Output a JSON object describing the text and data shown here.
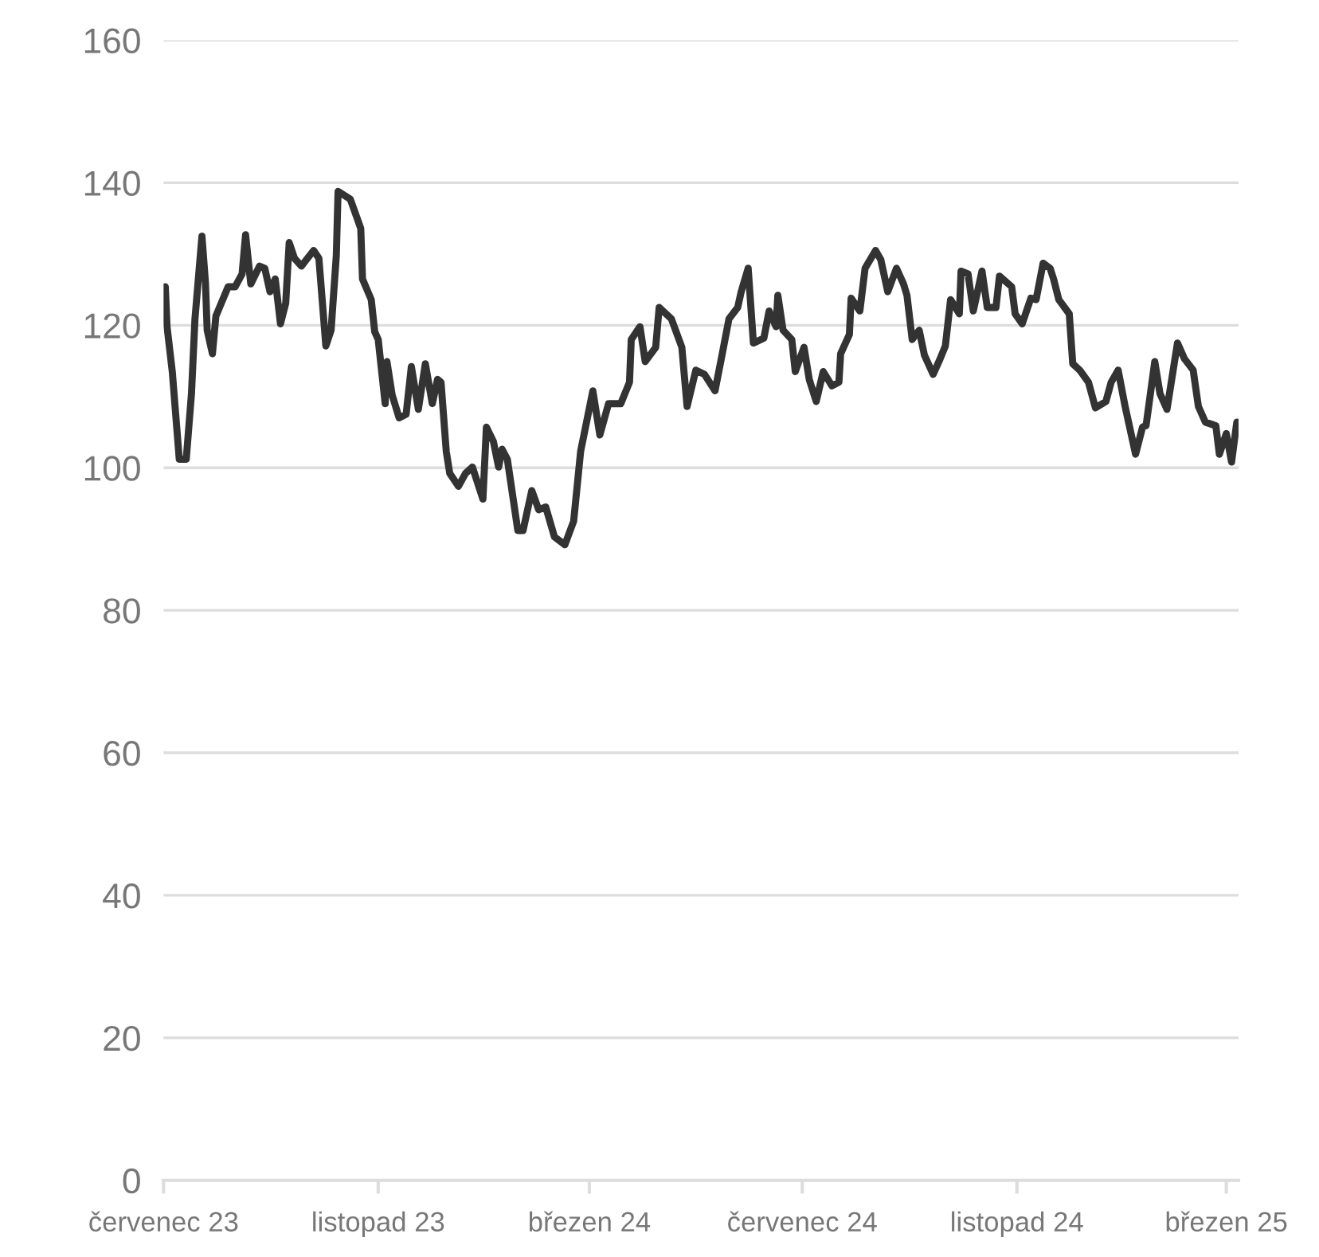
{
  "chart_data": {
    "type": "line",
    "x": [
      "2023-07-02",
      "2023-07-03",
      "2023-07-06",
      "2023-07-10",
      "2023-07-14",
      "2023-07-17",
      "2023-07-19",
      "2023-07-23",
      "2023-07-25",
      "2023-07-26",
      "2023-07-29",
      "2023-07-31",
      "2023-08-07",
      "2023-08-11",
      "2023-08-15",
      "2023-08-17",
      "2023-08-20",
      "2023-08-25",
      "2023-08-28",
      "2023-08-31",
      "2023-09-03",
      "2023-09-06",
      "2023-09-09",
      "2023-09-11",
      "2023-09-14",
      "2023-09-18",
      "2023-09-25",
      "2023-09-28",
      "2023-10-02",
      "2023-10-05",
      "2023-10-08",
      "2023-10-09",
      "2023-10-16",
      "2023-10-22",
      "2023-10-23",
      "2023-10-28",
      "2023-10-30",
      "2023-11-01",
      "2023-11-05",
      "2023-11-06",
      "2023-11-09",
      "2023-11-13",
      "2023-11-17",
      "2023-11-20",
      "2023-11-24",
      "2023-11-28",
      "2023-12-02",
      "2023-12-05",
      "2023-12-07",
      "2023-12-10",
      "2023-12-12",
      "2023-12-17",
      "2023-12-21",
      "2023-12-25",
      "2023-12-31",
      "2024-01-02",
      "2024-01-06",
      "2024-01-09",
      "2024-01-11",
      "2024-01-14",
      "2024-01-20",
      "2024-01-23",
      "2024-01-28",
      "2024-02-01",
      "2024-02-05",
      "2024-02-10",
      "2024-02-16",
      "2024-02-21",
      "2024-02-25",
      "2024-03-03",
      "2024-03-07",
      "2024-03-12",
      "2024-03-19",
      "2024-03-24",
      "2024-03-25",
      "2024-03-30",
      "2024-04-02",
      "2024-04-08",
      "2024-04-10",
      "2024-04-17",
      "2024-04-23",
      "2024-04-26",
      "2024-05-01",
      "2024-05-06",
      "2024-05-12",
      "2024-05-16",
      "2024-05-20",
      "2024-05-25",
      "2024-05-27",
      "2024-05-31",
      "2024-06-03",
      "2024-06-09",
      "2024-06-12",
      "2024-06-16",
      "2024-06-17",
      "2024-06-20",
      "2024-06-25",
      "2024-06-27",
      "2024-07-02",
      "2024-07-05",
      "2024-07-09",
      "2024-07-13",
      "2024-07-18",
      "2024-07-22",
      "2024-07-23",
      "2024-07-28",
      "2024-07-29",
      "2024-08-03",
      "2024-08-06",
      "2024-08-12",
      "2024-08-15",
      "2024-08-19",
      "2024-08-24",
      "2024-08-28",
      "2024-08-30",
      "2024-09-02",
      "2024-09-06",
      "2024-09-09",
      "2024-09-14",
      "2024-09-18",
      "2024-09-21",
      "2024-09-24",
      "2024-09-29",
      "2024-09-30",
      "2024-10-04",
      "2024-10-07",
      "2024-10-12",
      "2024-10-15",
      "2024-10-20",
      "2024-10-22",
      "2024-10-29",
      "2024-10-31",
      "2024-11-04",
      "2024-11-09",
      "2024-11-12",
      "2024-11-16",
      "2024-11-20",
      "2024-11-22",
      "2024-11-25",
      "2024-12-01",
      "2024-12-03",
      "2024-12-07",
      "2024-12-12",
      "2024-12-16",
      "2024-12-22",
      "2024-12-25",
      "2024-12-29",
      "2025-01-02",
      "2025-01-08",
      "2025-01-12",
      "2025-01-14",
      "2025-01-19",
      "2025-01-22",
      "2025-01-26",
      "2025-02-01",
      "2025-02-05",
      "2025-02-10",
      "2025-02-13",
      "2025-02-17",
      "2025-02-23",
      "2025-02-25",
      "2025-03-01",
      "2025-03-04",
      "2025-03-07"
    ],
    "values": [
      125.4,
      119.8,
      113.5,
      101.2,
      101.2,
      110.4,
      120.9,
      132.5,
      126,
      119.3,
      116,
      121.3,
      125.4,
      125.4,
      127.2,
      132.7,
      125.8,
      128.3,
      128,
      124.7,
      126.5,
      120.2,
      123.1,
      131.6,
      129.4,
      128.3,
      130.5,
      129.4,
      117.1,
      119.3,
      129.8,
      138.8,
      137.7,
      133.6,
      126.5,
      123.6,
      119.1,
      118,
      109,
      114.9,
      110.2,
      107,
      107.5,
      114.2,
      108.2,
      114.6,
      109,
      112.4,
      112,
      102.3,
      99.2,
      97.4,
      99.2,
      100.1,
      95.6,
      105.7,
      103.7,
      100.1,
      102.6,
      101.2,
      91.2,
      91.2,
      96.8,
      94.1,
      94.5,
      90.3,
      89.2,
      92.5,
      102.3,
      110.8,
      104.6,
      109,
      109,
      112,
      118,
      119.8,
      114.9,
      116.9,
      122.5,
      120.9,
      116.9,
      108.6,
      113.7,
      113.1,
      110.8,
      115.8,
      120.9,
      122.5,
      124.7,
      128,
      117.5,
      118.2,
      122,
      119.8,
      124.2,
      119.3,
      118,
      113.5,
      116.9,
      112.4,
      109.3,
      113.5,
      111.5,
      112,
      116,
      118.7,
      123.8,
      122,
      128,
      130.5,
      129.2,
      124.7,
      128,
      125.8,
      124.2,
      118,
      119.3,
      115.8,
      113.1,
      115.3,
      117.1,
      123.6,
      121.6,
      127.6,
      127.2,
      122,
      127.6,
      122.5,
      122.5,
      126.9,
      125.4,
      121.6,
      120.2,
      123.8,
      123.6,
      128.7,
      128,
      126.5,
      123.6,
      121.6,
      114.6,
      113.7,
      112,
      108.4,
      109.3,
      112,
      113.7,
      108.6,
      101.9,
      105.7,
      105.9,
      114.9,
      110.4,
      108.2,
      117.5,
      115.3,
      113.7,
      108.6,
      106.4,
      105.9,
      101.9,
      104.8,
      100.8,
      106.4
    ],
    "color": "#333333",
    "xlim": [
      "2023-07-01",
      "2025-03-08"
    ],
    "ylim": [
      0,
      160
    ],
    "xticks": [
      {
        "value": "2023-07-01",
        "label": "červenec 23"
      },
      {
        "value": "2023-11-01",
        "label": "listopad 23"
      },
      {
        "value": "2024-03-01",
        "label": "březen 24"
      },
      {
        "value": "2024-07-01",
        "label": "červenec 24"
      },
      {
        "value": "2024-11-01",
        "label": "listopad 24"
      },
      {
        "value": "2025-03-01",
        "label": "březen 25"
      }
    ],
    "yticks": [
      0,
      20,
      40,
      60,
      80,
      100,
      120,
      140,
      160
    ],
    "grid": "y",
    "line_style": "solid",
    "marker": "none"
  }
}
